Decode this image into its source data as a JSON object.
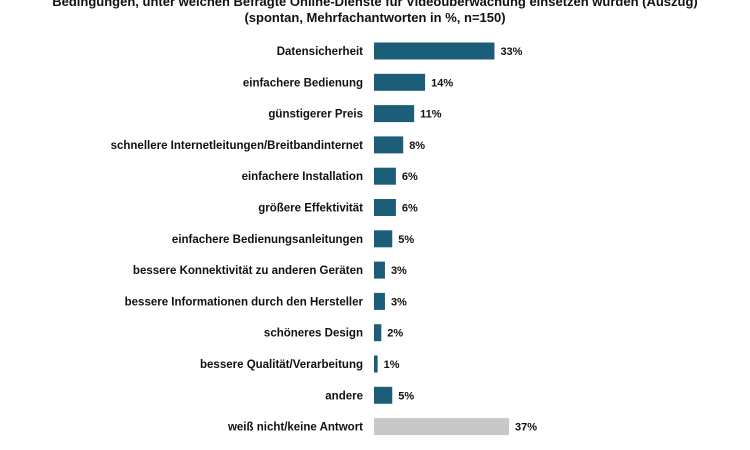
{
  "chart_data": {
    "type": "bar",
    "orientation": "horizontal",
    "title": "Bedingungen, unter welchen Befragte Online-Dienste für Videoüberwachung einsetzen würden (Auszug)",
    "subtitle": "(spontan, Mehrfachantworten in %, n=150)",
    "categories": [
      "Datensicherheit",
      "einfachere Bedienung",
      "günstigerer Preis",
      "schnellere Internetleitungen/Breitbandinternet",
      "einfachere Installation",
      "größere Effektivität",
      "einfachere Bedienungsanleitungen",
      "bessere Konnektivität zu anderen Geräten",
      "bessere Informationen durch den Hersteller",
      "schöneres Design",
      "bessere Qualität/Verarbeitung",
      "andere",
      "weiß nicht/keine Antwort"
    ],
    "values": [
      33,
      14,
      11,
      8,
      6,
      6,
      5,
      3,
      3,
      2,
      1,
      5,
      37
    ],
    "value_labels": [
      "33%",
      "14%",
      "11%",
      "8%",
      "6%",
      "6%",
      "5%",
      "3%",
      "3%",
      "2%",
      "1%",
      "5%",
      "37%"
    ],
    "colors": {
      "primary": "#1c5d78",
      "neutral": "#c8c8c8"
    },
    "neutral_index": 12,
    "xlim": [
      0,
      37
    ],
    "grid": false,
    "legend": "none"
  }
}
